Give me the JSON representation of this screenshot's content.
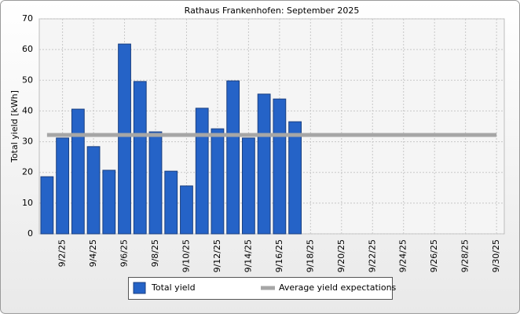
{
  "chart_data": {
    "type": "bar",
    "title": "Rathaus Frankenhofen: September 2025",
    "y_label": "Total yield [kWh]",
    "categories": [
      null,
      "9/2/25",
      null,
      "9/4/25",
      null,
      "9/6/25",
      null,
      "9/8/25",
      null,
      "9/10/25",
      null,
      "9/12/25",
      null,
      "9/14/25",
      null,
      "9/16/25",
      null,
      "9/18/25",
      null,
      "9/20/25",
      null,
      "9/22/25",
      null,
      "9/24/25",
      null,
      "9/26/25",
      null,
      "9/28/25",
      null,
      "9/30/25"
    ],
    "series": [
      {
        "name": "Total yield",
        "type": "bar",
        "color": "#2563c7",
        "values": [
          18.6,
          31.2,
          40.6,
          28.4,
          20.7,
          61.8,
          49.6,
          33.2,
          20.4,
          15.6,
          40.9,
          34.2,
          49.8,
          31.2,
          45.5,
          43.9,
          36.5,
          null,
          null,
          null,
          null,
          null,
          null,
          null,
          null,
          null,
          null,
          null,
          null,
          null
        ]
      },
      {
        "name": "Average yield expectations",
        "type": "line",
        "color": "#a6a6a6",
        "values": [
          32.2,
          32.2,
          32.2,
          32.2,
          32.2,
          32.2,
          32.2,
          32.2,
          32.2,
          32.2,
          32.2,
          32.2,
          32.2,
          32.2,
          32.2,
          32.2,
          32.2,
          32.2,
          32.2,
          32.2,
          32.2,
          32.2,
          32.2,
          32.2,
          32.2,
          32.2,
          32.2,
          32.2,
          32.2,
          32.2
        ]
      }
    ],
    "ylim": [
      0,
      70
    ],
    "yticks": [
      0,
      10,
      20,
      30,
      40,
      50,
      60,
      70
    ],
    "grid": true,
    "legend": "bottom"
  }
}
